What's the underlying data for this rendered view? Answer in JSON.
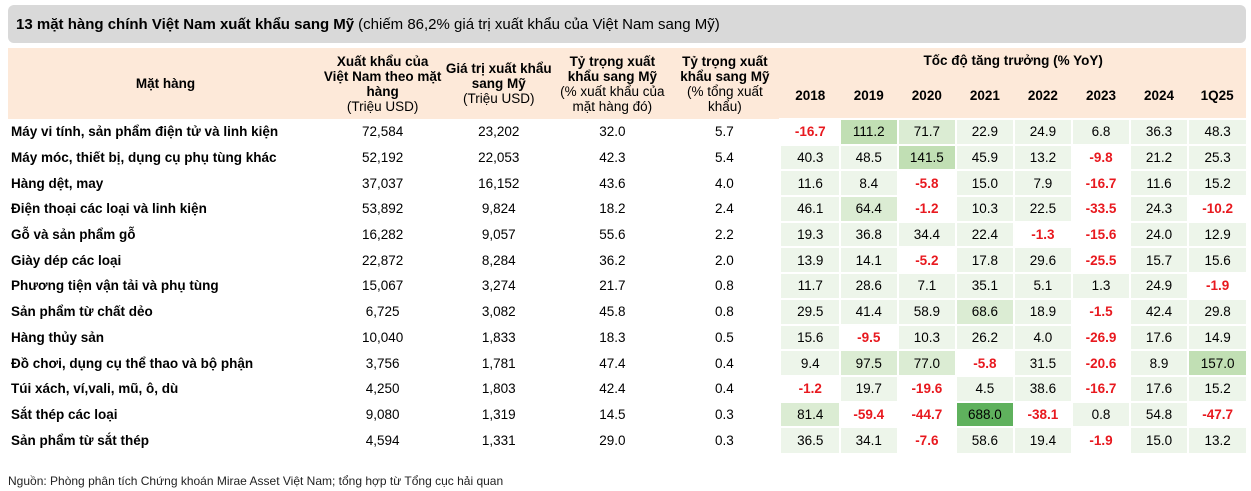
{
  "title": {
    "bold": "13 mặt hàng chính Việt Nam xuất khẩu sang Mỹ",
    "note": "(chiếm 86,2% giá trị xuất khẩu của Việt Nam sang Mỹ)"
  },
  "headers": {
    "item": "Mặt hàng",
    "col1": "Xuất khẩu của Việt Nam theo mặt hàng",
    "col1_unit": "(Triệu USD)",
    "col2": "Giá trị xuất khẩu sang Mỹ",
    "col2_unit": "(Triệu USD)",
    "col3": "Tỷ trọng xuất khẩu sang Mỹ",
    "col3_unit": "(% xuất khẩu của mặt hàng đó)",
    "col4": "Tỷ trọng xuất khẩu sang Mỹ",
    "col4_unit": "(% tổng xuất khẩu)",
    "growth": "Tốc độ tăng trưởng (% YoY)",
    "years": [
      "2018",
      "2019",
      "2020",
      "2021",
      "2022",
      "2023",
      "2024",
      "1Q25"
    ]
  },
  "rows": [
    {
      "name": "Máy vi tính, sản phẩm điện tử và linh kiện",
      "export": "72,584",
      "us": "23,202",
      "share_item": "32.0",
      "share_total": "5.7",
      "g": [
        "-16.7",
        "111.2",
        "71.7",
        "22.9",
        "24.9",
        "6.8",
        "36.3",
        "48.3"
      ]
    },
    {
      "name": "Máy móc, thiết bị, dụng cụ phụ tùng khác",
      "export": "52,192",
      "us": "22,053",
      "share_item": "42.3",
      "share_total": "5.4",
      "g": [
        "40.3",
        "48.5",
        "141.5",
        "45.9",
        "13.2",
        "-9.8",
        "21.2",
        "25.3"
      ]
    },
    {
      "name": "Hàng dệt, may",
      "export": "37,037",
      "us": "16,152",
      "share_item": "43.6",
      "share_total": "4.0",
      "g": [
        "11.6",
        "8.4",
        "-5.8",
        "15.0",
        "7.9",
        "-16.7",
        "11.6",
        "15.2"
      ]
    },
    {
      "name": "Điện thoại các loại và linh kiện",
      "export": "53,892",
      "us": "9,824",
      "share_item": "18.2",
      "share_total": "2.4",
      "g": [
        "46.1",
        "64.4",
        "-1.2",
        "10.3",
        "22.5",
        "-33.5",
        "24.3",
        "-10.2"
      ]
    },
    {
      "name": "Gỗ và sản phẩm gỗ",
      "export": "16,282",
      "us": "9,057",
      "share_item": "55.6",
      "share_total": "2.2",
      "g": [
        "19.3",
        "36.8",
        "34.4",
        "22.4",
        "-1.3",
        "-15.6",
        "24.0",
        "12.9"
      ]
    },
    {
      "name": "Giày dép các loại",
      "export": "22,872",
      "us": "8,284",
      "share_item": "36.2",
      "share_total": "2.0",
      "g": [
        "13.9",
        "14.1",
        "-5.2",
        "17.8",
        "29.6",
        "-25.5",
        "15.7",
        "15.6"
      ]
    },
    {
      "name": "Phương tiện vận tải và phụ tùng",
      "export": "15,067",
      "us": "3,274",
      "share_item": "21.7",
      "share_total": "0.8",
      "g": [
        "11.7",
        "28.6",
        "7.1",
        "35.1",
        "5.1",
        "1.3",
        "24.9",
        "-1.9"
      ]
    },
    {
      "name": "Sản phẩm từ chất dẻo",
      "export": "6,725",
      "us": "3,082",
      "share_item": "45.8",
      "share_total": "0.8",
      "g": [
        "29.5",
        "41.4",
        "58.9",
        "68.6",
        "18.9",
        "-1.5",
        "42.4",
        "29.8"
      ]
    },
    {
      "name": "Hàng thủy sản",
      "export": "10,040",
      "us": "1,833",
      "share_item": "18.3",
      "share_total": "0.5",
      "g": [
        "15.6",
        "-9.5",
        "10.3",
        "26.2",
        "4.0",
        "-26.9",
        "17.6",
        "14.9"
      ]
    },
    {
      "name": "Đồ chơi, dụng cụ thể thao và bộ phận",
      "export": "3,756",
      "us": "1,781",
      "share_item": "47.4",
      "share_total": "0.4",
      "g": [
        "9.4",
        "97.5",
        "77.0",
        "-5.8",
        "31.5",
        "-20.6",
        "8.9",
        "157.0"
      ]
    },
    {
      "name": "Túi xách, ví,vali, mũ, ô, dù",
      "export": "4,250",
      "us": "1,803",
      "share_item": "42.4",
      "share_total": "0.4",
      "g": [
        "-1.2",
        "19.7",
        "-19.6",
        "4.5",
        "38.6",
        "-16.7",
        "17.6",
        "15.2"
      ]
    },
    {
      "name": "Sắt thép các loại",
      "export": "9,080",
      "us": "1,319",
      "share_item": "14.5",
      "share_total": "0.3",
      "g": [
        "81.4",
        "-59.4",
        "-44.7",
        "688.0",
        "-38.1",
        "0.8",
        "54.8",
        "-47.7"
      ]
    },
    {
      "name": "Sản phẩm từ sắt thép",
      "export": "4,594",
      "us": "1,331",
      "share_item": "29.0",
      "share_total": "0.3",
      "g": [
        "36.5",
        "34.1",
        "-7.6",
        "58.6",
        "19.4",
        "-1.9",
        "15.0",
        "13.2"
      ]
    }
  ],
  "source": "Nguồn: Phòng phân tích Chứng khoán Mirae Asset Việt Nam; tổng hợp từ Tổng cục hải quan"
}
